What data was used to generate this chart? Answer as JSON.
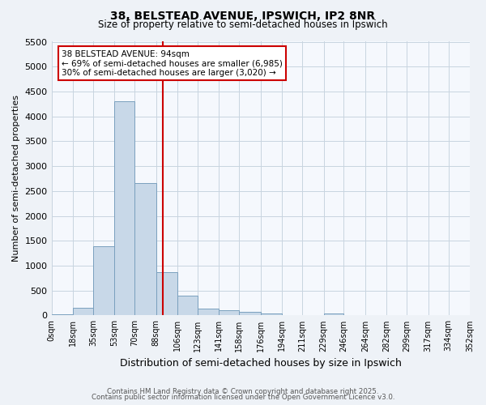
{
  "title_line1": "38, BELSTEAD AVENUE, IPSWICH, IP2 8NR",
  "title_line2": "Size of property relative to semi-detached houses in Ipswich",
  "xlabel": "Distribution of semi-detached houses by size in Ipswich",
  "ylabel": "Number of semi-detached properties",
  "bin_edges": [
    0,
    18,
    35,
    53,
    70,
    88,
    106,
    123,
    141,
    158,
    176,
    194,
    211,
    229,
    246,
    264,
    282,
    299,
    317,
    334,
    352
  ],
  "bin_labels": [
    "0sqm",
    "18sqm",
    "35sqm",
    "53sqm",
    "70sqm",
    "88sqm",
    "106sqm",
    "123sqm",
    "141sqm",
    "158sqm",
    "176sqm",
    "194sqm",
    "211sqm",
    "229sqm",
    "246sqm",
    "264sqm",
    "282sqm",
    "299sqm",
    "317sqm",
    "334sqm",
    "352sqm"
  ],
  "bar_values": [
    30,
    150,
    1390,
    4310,
    2660,
    870,
    390,
    145,
    100,
    65,
    40,
    15,
    15,
    40,
    0,
    0,
    0,
    0,
    0,
    0
  ],
  "bar_color": "#c8d8e8",
  "bar_edge_color": "#7aa0be",
  "property_sqm": 94,
  "property_line_color": "#cc0000",
  "annotation_text": "38 BELSTEAD AVENUE: 94sqm\n← 69% of semi-detached houses are smaller (6,985)\n30% of semi-detached houses are larger (3,020) →",
  "annotation_box_color": "#ffffff",
  "annotation_box_edge": "#cc0000",
  "ylim": [
    0,
    5500
  ],
  "yticks": [
    0,
    500,
    1000,
    1500,
    2000,
    2500,
    3000,
    3500,
    4000,
    4500,
    5000,
    5500
  ],
  "footer_line1": "Contains HM Land Registry data © Crown copyright and database right 2025.",
  "footer_line2": "Contains public sector information licensed under the Open Government Licence v3.0.",
  "bg_color": "#eef2f7",
  "plot_bg_color": "#f5f8fd",
  "grid_color": "#c8d4e0"
}
